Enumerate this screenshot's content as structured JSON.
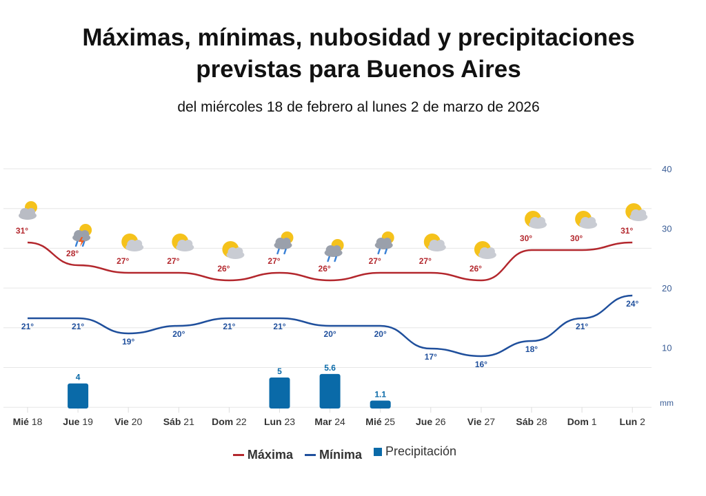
{
  "title_line1": "Máximas, mínimas, nubosidad  y precipitaciones",
  "title_line2": "previstas para Buenos Aires",
  "subtitle": "del miércoles 18 de febrero al lunes 2 de marzo de 2026",
  "colors": {
    "max": "#b3272d",
    "min": "#1f4f9c",
    "precip": "#0a6aa8",
    "grid": "#e6e6e6",
    "axis_label": "#3a5d96"
  },
  "chart_data": {
    "type": "line+bar",
    "categories": [
      {
        "day": "Mié",
        "num": "18"
      },
      {
        "day": "Jue",
        "num": "19"
      },
      {
        "day": "Vie",
        "num": "20"
      },
      {
        "day": "Sáb",
        "num": "21"
      },
      {
        "day": "Dom",
        "num": "22"
      },
      {
        "day": "Lun",
        "num": "23"
      },
      {
        "day": "Mar",
        "num": "24"
      },
      {
        "day": "Mié",
        "num": "25"
      },
      {
        "day": "Jue",
        "num": "26"
      },
      {
        "day": "Vie",
        "num": "27"
      },
      {
        "day": "Sáb",
        "num": "28"
      },
      {
        "day": "Dom",
        "num": "1"
      },
      {
        "day": "Lun",
        "num": "2"
      }
    ],
    "series": [
      {
        "name": "Máxima",
        "type": "line",
        "unit": "°",
        "values": [
          31,
          28,
          27,
          27,
          26,
          27,
          26,
          27,
          27,
          26,
          30,
          30,
          31
        ]
      },
      {
        "name": "Mínima",
        "type": "line",
        "unit": "°",
        "values": [
          21,
          21,
          19,
          20,
          21,
          21,
          20,
          20,
          17,
          16,
          18,
          21,
          24
        ]
      },
      {
        "name": "Precipitación",
        "type": "bar",
        "unit": "mm",
        "values": [
          null,
          4,
          null,
          null,
          null,
          5,
          5.6,
          1.1,
          null,
          null,
          null,
          null,
          null
        ]
      }
    ],
    "weather_icons": [
      "partly-cloudy",
      "thunderstorm",
      "mostly-sunny",
      "mostly-sunny",
      "mostly-sunny",
      "rain",
      "rain",
      "rain",
      "mostly-sunny",
      "mostly-sunny",
      "mostly-sunny",
      "mostly-sunny",
      "mostly-sunny"
    ],
    "y_ticks": [
      "40",
      "30",
      "20",
      "10"
    ],
    "y_unit_label": "mm",
    "grid": true,
    "legend_placement": "bottom"
  }
}
